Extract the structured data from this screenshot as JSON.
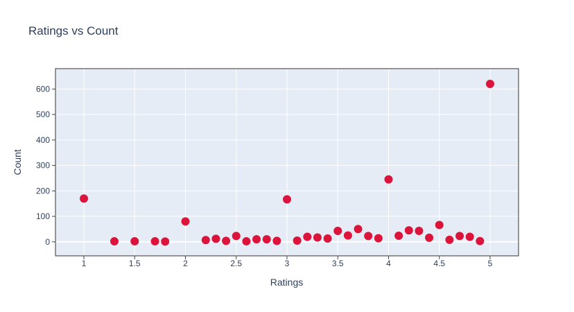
{
  "chart_data": {
    "type": "scatter",
    "title": "Ratings vs Count",
    "xlabel": "Ratings",
    "ylabel": "Count",
    "xlim": [
      0.72,
      5.28
    ],
    "ylim": [
      -55,
      680
    ],
    "x_ticks": [
      1,
      1.5,
      2,
      2.5,
      3,
      3.5,
      4,
      4.5,
      5
    ],
    "x_tick_labels": [
      "1",
      "1.5",
      "2",
      "2.5",
      "3",
      "3.5",
      "4",
      "4.5",
      "5"
    ],
    "y_ticks": [
      0,
      100,
      200,
      300,
      400,
      500,
      600
    ],
    "y_tick_labels": [
      "0",
      "100",
      "200",
      "300",
      "400",
      "500",
      "600"
    ],
    "grid": true,
    "legend": "none",
    "colors": {
      "marker": "#dc143c",
      "plot_bg": "#e5ecf6",
      "grid": "#ffffff",
      "text": "#2a3f5f"
    },
    "x": [
      1,
      1.3,
      1.5,
      1.7,
      1.8,
      2,
      2.2,
      2.3,
      2.4,
      2.5,
      2.6,
      2.7,
      2.8,
      2.9,
      3,
      3.1,
      3.2,
      3.3,
      3.4,
      3.5,
      3.6,
      3.7,
      3.8,
      3.9,
      4,
      4.1,
      4.2,
      4.3,
      4.4,
      4.5,
      4.6,
      4.7,
      4.8,
      4.9,
      5
    ],
    "y": [
      170,
      2,
      2,
      2,
      1,
      80,
      7,
      12,
      4,
      23,
      2,
      10,
      10,
      4,
      167,
      5,
      20,
      17,
      13,
      43,
      25,
      50,
      23,
      14,
      245,
      24,
      45,
      43,
      16,
      66,
      8,
      23,
      20,
      3,
      620
    ]
  }
}
